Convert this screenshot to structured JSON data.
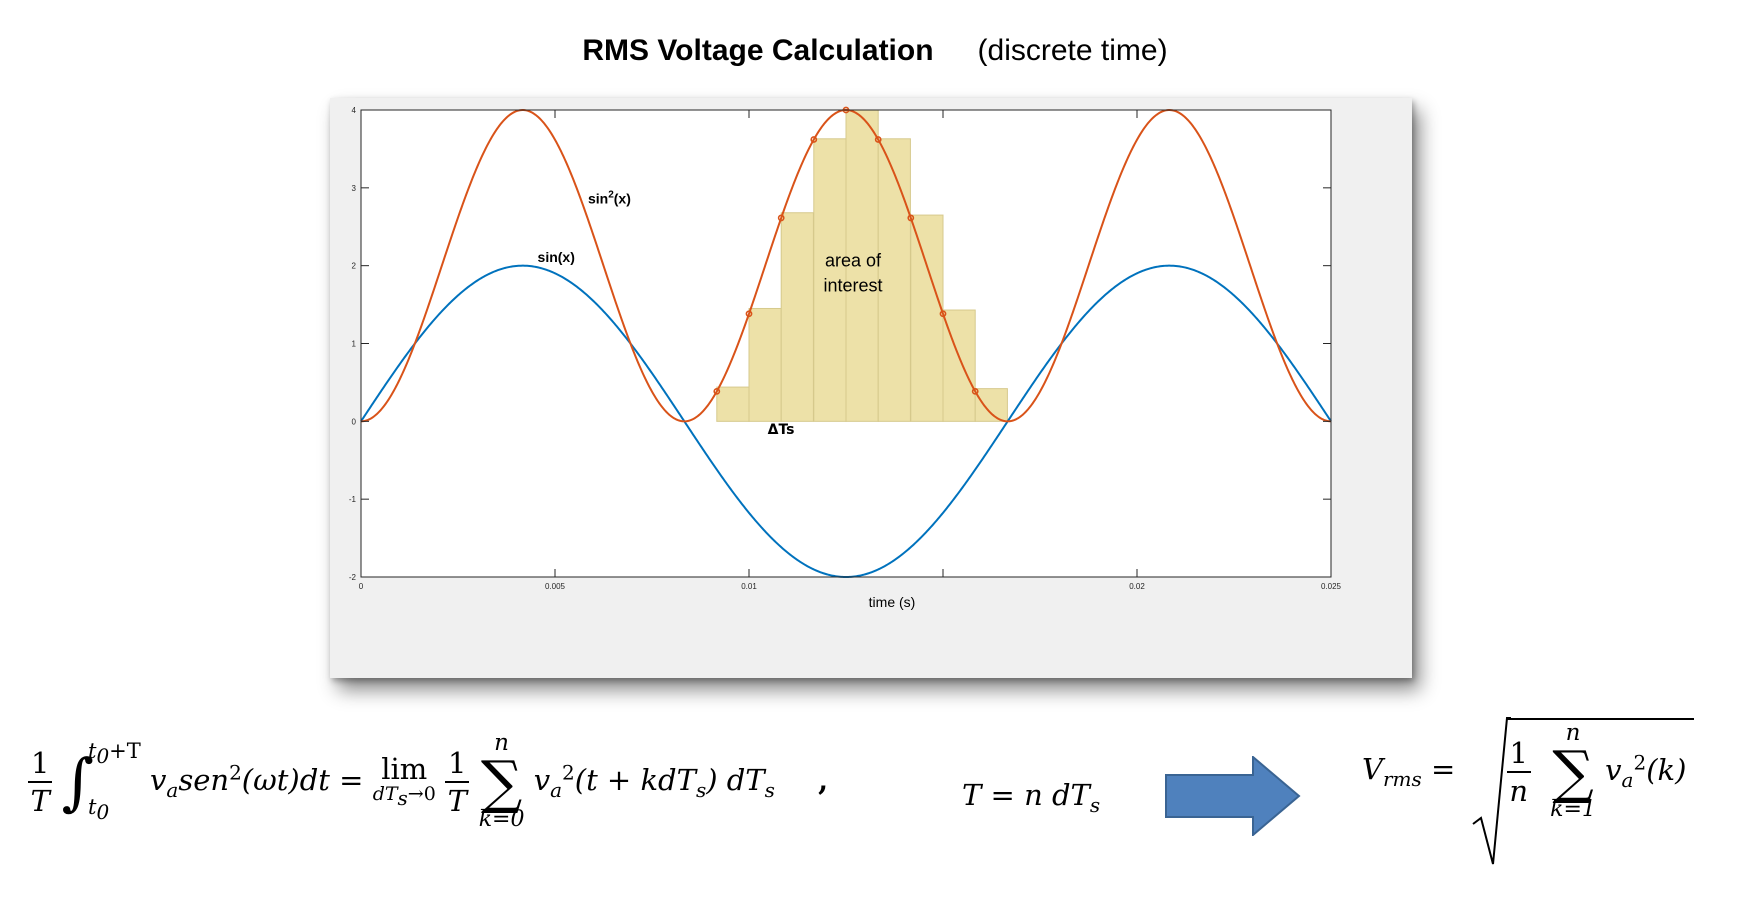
{
  "title": {
    "main": "RMS Voltage Calculation",
    "sub": "(discrete time)"
  },
  "colors": {
    "sin": "#0072BD",
    "sin2": "#D95319",
    "bars": "#EDE1A8",
    "bar_edge": "#d6c98c",
    "arrow": "#4F81BD"
  },
  "chart_data": {
    "type": "line",
    "title": "",
    "xlabel": "time (s)",
    "ylabel": "",
    "xlim": [
      0,
      0.025
    ],
    "ylim": [
      -2,
      4
    ],
    "x_ticks": [
      0,
      0.005,
      0.01,
      0.015,
      0.02,
      0.025
    ],
    "x_tick_labels": [
      "0",
      "0.005",
      "0.01",
      "",
      "0.02",
      "0.025"
    ],
    "y_ticks": [
      -2,
      -1,
      0,
      1,
      2,
      3,
      4
    ],
    "y_tick_labels": [
      "-2",
      "-1",
      "0",
      "1",
      "2",
      "3",
      "4"
    ],
    "frequency_hz": 60,
    "series": [
      {
        "name": "sin(x)",
        "amplitude": 2,
        "function": "2·sin(2π·60·t)"
      },
      {
        "name": "sin2(x)",
        "amplitude": 4,
        "function": "4·sin²(2π·60·t)"
      }
    ],
    "samples": {
      "t": [
        0.00917,
        0.01,
        0.01083,
        0.01167,
        0.0125,
        0.01333,
        0.01417,
        0.015,
        0.01583
      ],
      "values": [
        0.44,
        1.45,
        2.68,
        3.63,
        4.0,
        3.63,
        2.65,
        1.43,
        0.42
      ],
      "bar_width_s": 0.00083,
      "bar_color": "#EDE1A8"
    },
    "annotations": [
      {
        "text": "sin",
        "sup": "2",
        "text2": "(x)",
        "x": 0.00585,
        "y": 2.8
      },
      {
        "text": "sin(x)",
        "x": 0.00455,
        "y": 2.05
      },
      {
        "text": "area of",
        "x": 0.01268,
        "y": 1.99
      },
      {
        "text": "interest",
        "x": 0.01268,
        "y": 1.67
      },
      {
        "text": "ΔTs",
        "x": 0.01048,
        "y": -0.16
      }
    ],
    "grid": false,
    "legend": "none"
  },
  "equation_left": {
    "one": "1",
    "T": "T",
    "int_upper": "t",
    "int_upper_sub": "0",
    "int_upper_rest": "+T",
    "int_lower": "t",
    "int_lower_sub": "0",
    "integrand": "v",
    "integrand_sub": "a",
    "integrand_fn": "sen",
    "integrand_sup": "2",
    "integrand_arg": "(ωt)dt =",
    "lim": "lim",
    "lim_under": "dT",
    "lim_under_sub": "s",
    "lim_under_rest": "→0",
    "sum_top": "n",
    "sum_bot": "k=0",
    "term": "v",
    "term_sub": "a",
    "term_sup": "2",
    "term_arg": "(t + kdT",
    "term_arg_sub": "s",
    "term_arg_end": ") dT",
    "term_end_sub": "s",
    "comma": ","
  },
  "equation_mid": {
    "lhs": "T = n dT",
    "lhs_sub": "s"
  },
  "equation_right": {
    "lhs": "V",
    "lhs_sub": "rms",
    "eq": "=",
    "one": "1",
    "n": "n",
    "sum_top": "n",
    "sum_bot": "k=1",
    "term": "v",
    "term_sub": "a",
    "term_sup": "2",
    "term_arg": "(k)"
  }
}
